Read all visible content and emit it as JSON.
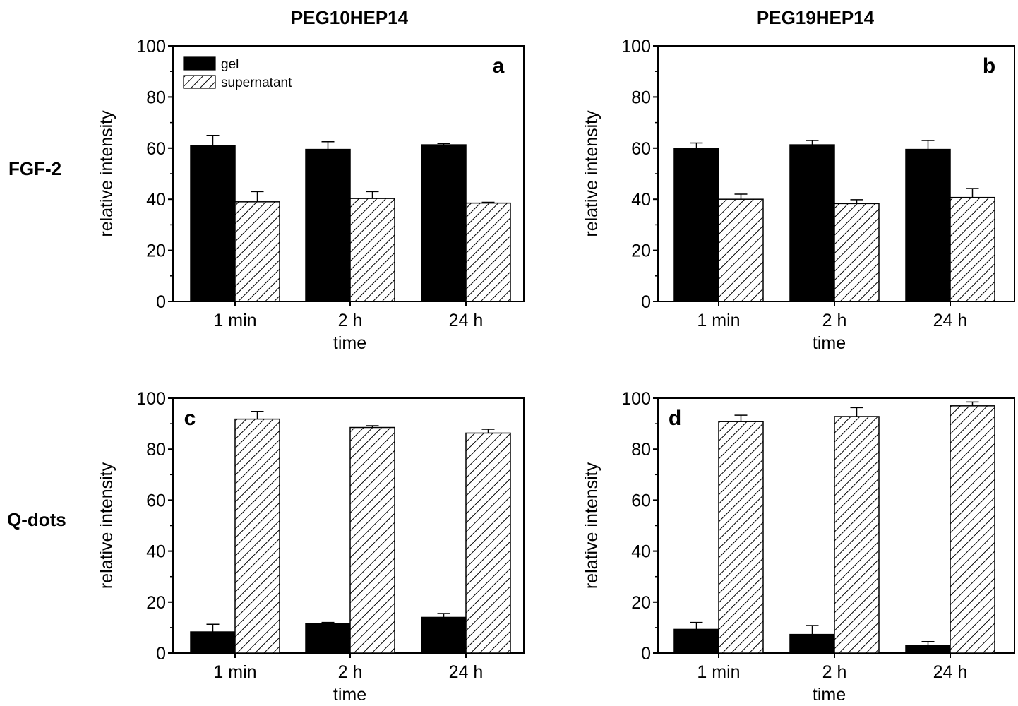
{
  "figure": {
    "column_titles": [
      "PEG10HEP14",
      "PEG19HEP14"
    ],
    "row_labels": [
      "FGF-2",
      "Q-dots"
    ],
    "legend": {
      "items": [
        "gel",
        "supernatant"
      ]
    }
  },
  "colors": {
    "gel": "#000000",
    "supernatant_hatch": "#000000",
    "supernatant_bg": "#ffffff"
  },
  "chart_data": [
    {
      "type": "bar",
      "panel": "a",
      "categories": [
        "1 min",
        "2 h",
        "24 h"
      ],
      "xlabel": "time",
      "ylabel": "relative intensity",
      "ylim": [
        0,
        100
      ],
      "yticks": [
        0,
        20,
        40,
        60,
        80,
        100
      ],
      "series": [
        {
          "name": "gel",
          "values": [
            61,
            59.5,
            61.3
          ],
          "errors": [
            4,
            3,
            0.5
          ]
        },
        {
          "name": "supernatant",
          "values": [
            39,
            40.3,
            38.5
          ],
          "errors": [
            4,
            2.7,
            0.3
          ]
        }
      ],
      "legend": "top-left"
    },
    {
      "type": "bar",
      "panel": "b",
      "categories": [
        "1 min",
        "2 h",
        "24 h"
      ],
      "xlabel": "time",
      "ylabel": "relative intensity",
      "ylim": [
        0,
        100
      ],
      "yticks": [
        0,
        20,
        40,
        60,
        80,
        100
      ],
      "series": [
        {
          "name": "gel",
          "values": [
            60,
            61.3,
            59.5
          ],
          "errors": [
            2,
            1.7,
            3.5
          ]
        },
        {
          "name": "supernatant",
          "values": [
            40,
            38.3,
            40.7
          ],
          "errors": [
            2,
            1.5,
            3.5
          ]
        }
      ]
    },
    {
      "type": "bar",
      "panel": "c",
      "categories": [
        "1 min",
        "2 h",
        "24 h"
      ],
      "xlabel": "time",
      "ylabel": "relative intensity",
      "ylim": [
        0,
        100
      ],
      "yticks": [
        0,
        20,
        40,
        60,
        80,
        100
      ],
      "series": [
        {
          "name": "gel",
          "values": [
            8.3,
            11.5,
            14
          ],
          "errors": [
            3,
            0.5,
            1.5
          ]
        },
        {
          "name": "supernatant",
          "values": [
            91.8,
            88.5,
            86.3
          ],
          "errors": [
            3,
            0.7,
            1.5
          ]
        }
      ]
    },
    {
      "type": "bar",
      "panel": "d",
      "categories": [
        "1 min",
        "2 h",
        "24 h"
      ],
      "xlabel": "time",
      "ylabel": "relative intensity",
      "ylim": [
        0,
        100
      ],
      "yticks": [
        0,
        20,
        40,
        60,
        80,
        100
      ],
      "series": [
        {
          "name": "gel",
          "values": [
            9.3,
            7.3,
            3
          ],
          "errors": [
            2.7,
            3.5,
            1.5
          ]
        },
        {
          "name": "supernatant",
          "values": [
            90.8,
            92.8,
            97
          ],
          "errors": [
            2.5,
            3.5,
            1.5
          ]
        }
      ]
    }
  ]
}
